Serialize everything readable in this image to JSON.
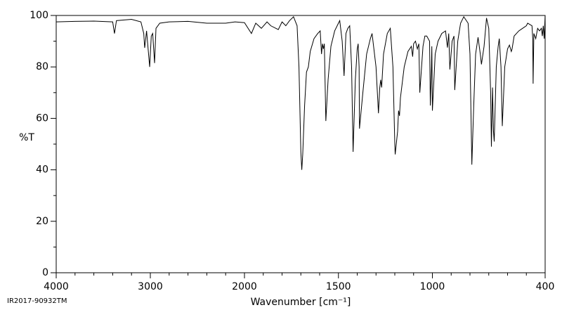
{
  "chart_data": {
    "type": "line",
    "xlabel": "Wavenumber [cm⁻¹]",
    "ylabel": "%T",
    "footnote": "IR2017-90932TM",
    "color": "#000000",
    "xlim": [
      4000,
      400
    ],
    "x_scale_change": 2000,
    "xticks": [
      4000,
      3000,
      2000,
      1500,
      1000,
      400
    ],
    "xminorticks": [
      3800,
      3600,
      3400,
      3200,
      2800,
      2600,
      2400,
      2200,
      1900,
      1800,
      1700,
      1600,
      1400,
      1300,
      1200,
      1100,
      900,
      800,
      700,
      600,
      500
    ],
    "ylim": [
      0,
      100
    ],
    "yticks": [
      0,
      20,
      40,
      60,
      80,
      100
    ],
    "yminorticks": [
      10,
      30,
      50,
      70,
      90
    ],
    "x": [
      4000,
      3800,
      3600,
      3400,
      3381,
      3360,
      3200,
      3100,
      3070,
      3060,
      3040,
      3007,
      2990,
      2975,
      2955,
      2940,
      2900,
      2800,
      2600,
      2400,
      2200,
      2100,
      2000,
      1963,
      1940,
      1910,
      1880,
      1860,
      1820,
      1800,
      1780,
      1760,
      1739,
      1720,
      1710,
      1700,
      1695,
      1690,
      1680,
      1670,
      1660,
      1650,
      1630,
      1610,
      1597,
      1590,
      1585,
      1580,
      1575,
      1567,
      1555,
      1540,
      1520,
      1500,
      1493,
      1480,
      1470,
      1460,
      1450,
      1440,
      1430,
      1422,
      1410,
      1400,
      1395,
      1390,
      1388,
      1370,
      1350,
      1330,
      1321,
      1300,
      1287,
      1280,
      1275,
      1270,
      1260,
      1240,
      1224,
      1210,
      1200,
      1198,
      1185,
      1180,
      1175,
      1170,
      1150,
      1130,
      1112,
      1105,
      1100,
      1090,
      1080,
      1072,
      1067,
      1050,
      1040,
      1030,
      1015,
      1011,
      1005,
      1003,
      1000,
      985,
      970,
      950,
      930,
      920,
      913,
      907,
      895,
      885,
      881,
      865,
      850,
      833,
      810,
      800,
      790,
      780,
      770,
      757,
      745,
      739,
      725,
      712,
      700,
      690,
      686,
      680,
      675,
      671,
      660,
      650,
      644,
      635,
      628,
      615,
      600,
      590,
      580,
      576,
      565,
      540,
      520,
      500,
      493,
      470,
      466,
      464,
      460,
      450,
      440,
      430,
      420,
      415,
      410,
      405,
      400
    ],
    "values": [
      97.5,
      97.7,
      97.8,
      97.5,
      93,
      98,
      98.5,
      97.5,
      93,
      87.4,
      94,
      80,
      92,
      93,
      81.5,
      95,
      97,
      97.5,
      97.7,
      97,
      97,
      97.5,
      97.2,
      93,
      97,
      95,
      97.5,
      96,
      94.5,
      97.5,
      96,
      98,
      99.5,
      96,
      80,
      47,
      40,
      46,
      65,
      78,
      80,
      86,
      91,
      93,
      94,
      85,
      89,
      87,
      89,
      59,
      75,
      88,
      94,
      97,
      98,
      90,
      76.5,
      93,
      95,
      96,
      80,
      47,
      75,
      87,
      89,
      80,
      56,
      70,
      85,
      91,
      93,
      80,
      62,
      72,
      75,
      72,
      85,
      93,
      95,
      80,
      50,
      46,
      55,
      63,
      61,
      68,
      80,
      86,
      88,
      84,
      89,
      90,
      87,
      89,
      70,
      88,
      92,
      92,
      90,
      65,
      80,
      88,
      63,
      85,
      90,
      93,
      94,
      87.5,
      93,
      79,
      90,
      92,
      71,
      90,
      97,
      99.5,
      97,
      85,
      42,
      65,
      85,
      91.5,
      85,
      81,
      88,
      99,
      95,
      70,
      49,
      72,
      55,
      51,
      80,
      88,
      91,
      80,
      57,
      80,
      87,
      88.5,
      86,
      87,
      92,
      94,
      95,
      96,
      97,
      96,
      91,
      73.5,
      93,
      91,
      95,
      94,
      95,
      92,
      96,
      91,
      100
    ]
  }
}
